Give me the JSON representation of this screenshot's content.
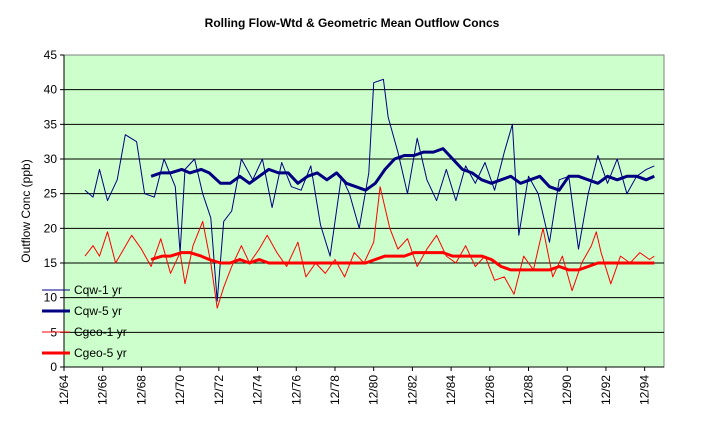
{
  "chart_data": {
    "type": "line",
    "title": "Rolling Flow-Wtd & Geometric Mean Outflow Concs",
    "ylabel": "Outflow Conc (ppb)",
    "xlabel": "",
    "ylim": [
      0,
      45
    ],
    "xlim": [
      "1964-12",
      "1995-12"
    ],
    "yticks": [
      "0",
      "5",
      "10",
      "15",
      "20",
      "25",
      "30",
      "35",
      "40",
      "45"
    ],
    "xticks": [
      "12/64",
      "12/66",
      "12/68",
      "12/70",
      "12/72",
      "12/74",
      "12/76",
      "12/78",
      "12/80",
      "12/82",
      "12/84",
      "12/86",
      "12/88",
      "12/90",
      "12/92",
      "12/94"
    ],
    "plot_background": "#ccffcc",
    "grid": "horizontal",
    "legend_placement": "left-inside",
    "series": [
      {
        "name": "Cqw-1 yr",
        "color": "#000080",
        "line_weight": "thin",
        "points": [
          [
            "1966-01",
            25.5
          ],
          [
            "1966-06",
            24.5
          ],
          [
            "1966-10",
            28.5
          ],
          [
            "1967-03",
            24.0
          ],
          [
            "1967-09",
            27.0
          ],
          [
            "1968-02",
            33.5
          ],
          [
            "1968-09",
            32.5
          ],
          [
            "1969-02",
            25.0
          ],
          [
            "1969-08",
            24.5
          ],
          [
            "1970-02",
            30.0
          ],
          [
            "1970-09",
            26.0
          ],
          [
            "1970-12",
            16.5
          ],
          [
            "1971-03",
            28.5
          ],
          [
            "1971-09",
            30.0
          ],
          [
            "1972-02",
            25.0
          ],
          [
            "1972-07",
            21.5
          ],
          [
            "1972-11",
            9.5
          ],
          [
            "1973-03",
            21.0
          ],
          [
            "1973-08",
            22.5
          ],
          [
            "1974-02",
            30.0
          ],
          [
            "1974-09",
            27.0
          ],
          [
            "1975-03",
            30.0
          ],
          [
            "1975-09",
            23.0
          ],
          [
            "1976-03",
            29.5
          ],
          [
            "1976-09",
            26.0
          ],
          [
            "1977-03",
            25.5
          ],
          [
            "1977-09",
            29.0
          ],
          [
            "1978-03",
            20.5
          ],
          [
            "1978-09",
            16.0
          ],
          [
            "1979-04",
            27.5
          ],
          [
            "1979-09",
            25.0
          ],
          [
            "1980-03",
            20.0
          ],
          [
            "1980-09",
            28.0
          ],
          [
            "1980-12",
            41.0
          ],
          [
            "1981-06",
            41.5
          ],
          [
            "1981-09",
            36.0
          ],
          [
            "1982-03",
            31.0
          ],
          [
            "1982-09",
            25.0
          ],
          [
            "1983-03",
            33.0
          ],
          [
            "1983-09",
            27.0
          ],
          [
            "1984-03",
            24.0
          ],
          [
            "1984-09",
            28.5
          ],
          [
            "1985-03",
            24.0
          ],
          [
            "1985-09",
            29.0
          ],
          [
            "1986-03",
            26.5
          ],
          [
            "1986-09",
            29.5
          ],
          [
            "1987-03",
            25.5
          ],
          [
            "1987-09",
            31.0
          ],
          [
            "1988-02",
            35.0
          ],
          [
            "1988-06",
            19.0
          ],
          [
            "1988-12",
            27.5
          ],
          [
            "1989-06",
            25.0
          ],
          [
            "1990-01",
            18.0
          ],
          [
            "1990-07",
            27.0
          ],
          [
            "1991-01",
            27.5
          ],
          [
            "1991-07",
            17.0
          ],
          [
            "1992-01",
            25.0
          ],
          [
            "1992-07",
            30.5
          ],
          [
            "1993-01",
            26.5
          ],
          [
            "1993-07",
            30.0
          ],
          [
            "1994-01",
            25.0
          ],
          [
            "1994-07",
            27.5
          ],
          [
            "1995-01",
            28.5
          ],
          [
            "1995-06",
            29.0
          ]
        ]
      },
      {
        "name": "Cqw-5 yr",
        "color": "#000080",
        "line_weight": "thick",
        "points": [
          [
            "1969-06",
            27.5
          ],
          [
            "1969-12",
            28.0
          ],
          [
            "1970-06",
            28.0
          ],
          [
            "1971-01",
            28.5
          ],
          [
            "1971-06",
            28.0
          ],
          [
            "1972-01",
            28.5
          ],
          [
            "1972-06",
            28.0
          ],
          [
            "1973-01",
            26.5
          ],
          [
            "1973-07",
            26.5
          ],
          [
            "1974-01",
            27.5
          ],
          [
            "1974-07",
            26.5
          ],
          [
            "1975-01",
            27.5
          ],
          [
            "1975-07",
            28.5
          ],
          [
            "1976-01",
            28.0
          ],
          [
            "1976-07",
            28.0
          ],
          [
            "1977-01",
            26.5
          ],
          [
            "1977-07",
            27.5
          ],
          [
            "1978-01",
            28.0
          ],
          [
            "1978-07",
            27.0
          ],
          [
            "1979-01",
            28.0
          ],
          [
            "1979-07",
            26.5
          ],
          [
            "1980-01",
            26.0
          ],
          [
            "1980-07",
            25.5
          ],
          [
            "1981-01",
            26.5
          ],
          [
            "1981-07",
            28.5
          ],
          [
            "1982-01",
            30.0
          ],
          [
            "1982-07",
            30.5
          ],
          [
            "1983-01",
            30.5
          ],
          [
            "1983-07",
            31.0
          ],
          [
            "1984-01",
            31.0
          ],
          [
            "1984-07",
            31.5
          ],
          [
            "1985-01",
            30.0
          ],
          [
            "1985-07",
            28.5
          ],
          [
            "1986-01",
            28.0
          ],
          [
            "1986-07",
            27.0
          ],
          [
            "1987-01",
            26.5
          ],
          [
            "1987-07",
            27.0
          ],
          [
            "1988-01",
            27.5
          ],
          [
            "1988-07",
            26.5
          ],
          [
            "1989-01",
            27.0
          ],
          [
            "1989-07",
            27.5
          ],
          [
            "1990-01",
            26.0
          ],
          [
            "1990-07",
            25.5
          ],
          [
            "1991-01",
            27.5
          ],
          [
            "1991-07",
            27.5
          ],
          [
            "1992-01",
            27.0
          ],
          [
            "1992-07",
            26.5
          ],
          [
            "1993-01",
            27.5
          ],
          [
            "1993-07",
            27.0
          ],
          [
            "1994-01",
            27.5
          ],
          [
            "1994-07",
            27.5
          ],
          [
            "1995-01",
            27.0
          ],
          [
            "1995-06",
            27.5
          ]
        ]
      },
      {
        "name": "Cgeo-1 yr",
        "color": "#ff0000",
        "line_weight": "thin",
        "points": [
          [
            "1966-01",
            16.0
          ],
          [
            "1966-06",
            17.5
          ],
          [
            "1966-10",
            16.0
          ],
          [
            "1967-03",
            19.5
          ],
          [
            "1967-08",
            15.0
          ],
          [
            "1968-01",
            17.0
          ],
          [
            "1968-06",
            19.0
          ],
          [
            "1968-12",
            17.0
          ],
          [
            "1969-06",
            14.5
          ],
          [
            "1969-12",
            18.5
          ],
          [
            "1970-06",
            13.5
          ],
          [
            "1970-12",
            16.5
          ],
          [
            "1971-03",
            12.0
          ],
          [
            "1971-08",
            17.5
          ],
          [
            "1972-02",
            21.0
          ],
          [
            "1972-07",
            15.0
          ],
          [
            "1972-11",
            8.5
          ],
          [
            "1973-03",
            11.5
          ],
          [
            "1973-08",
            14.5
          ],
          [
            "1974-02",
            17.5
          ],
          [
            "1974-07",
            15.0
          ],
          [
            "1975-01",
            17.0
          ],
          [
            "1975-06",
            19.0
          ],
          [
            "1975-12",
            16.5
          ],
          [
            "1976-06",
            14.5
          ],
          [
            "1977-01",
            18.0
          ],
          [
            "1977-06",
            13.0
          ],
          [
            "1977-12",
            15.0
          ],
          [
            "1978-06",
            13.5
          ],
          [
            "1978-12",
            15.5
          ],
          [
            "1979-06",
            13.0
          ],
          [
            "1979-12",
            16.5
          ],
          [
            "1980-06",
            15.0
          ],
          [
            "1980-12",
            18.0
          ],
          [
            "1981-04",
            26.0
          ],
          [
            "1981-10",
            20.0
          ],
          [
            "1982-03",
            17.0
          ],
          [
            "1982-09",
            18.5
          ],
          [
            "1983-03",
            14.5
          ],
          [
            "1983-09",
            17.0
          ],
          [
            "1984-03",
            19.0
          ],
          [
            "1984-09",
            16.0
          ],
          [
            "1985-03",
            15.0
          ],
          [
            "1985-09",
            17.5
          ],
          [
            "1986-03",
            14.5
          ],
          [
            "1986-09",
            16.0
          ],
          [
            "1987-03",
            12.5
          ],
          [
            "1987-09",
            13.0
          ],
          [
            "1988-03",
            10.5
          ],
          [
            "1988-09",
            16.0
          ],
          [
            "1989-03",
            14.0
          ],
          [
            "1989-09",
            20.0
          ],
          [
            "1990-03",
            13.0
          ],
          [
            "1990-09",
            16.0
          ],
          [
            "1991-03",
            11.0
          ],
          [
            "1991-09",
            15.0
          ],
          [
            "1992-03",
            17.5
          ],
          [
            "1992-06",
            19.5
          ],
          [
            "1992-09",
            16.5
          ],
          [
            "1993-03",
            12.0
          ],
          [
            "1993-09",
            16.0
          ],
          [
            "1994-03",
            15.0
          ],
          [
            "1994-09",
            16.5
          ],
          [
            "1995-03",
            15.5
          ],
          [
            "1995-06",
            16.0
          ]
        ]
      },
      {
        "name": "Cgeo-5 yr",
        "color": "#ff0000",
        "line_weight": "thick",
        "points": [
          [
            "1969-06",
            15.5
          ],
          [
            "1970-01",
            16.0
          ],
          [
            "1970-06",
            16.0
          ],
          [
            "1971-01",
            16.5
          ],
          [
            "1971-06",
            16.5
          ],
          [
            "1972-01",
            16.0
          ],
          [
            "1972-06",
            15.5
          ],
          [
            "1973-01",
            15.0
          ],
          [
            "1973-07",
            15.0
          ],
          [
            "1974-01",
            15.5
          ],
          [
            "1974-07",
            15.0
          ],
          [
            "1975-01",
            15.5
          ],
          [
            "1975-07",
            15.0
          ],
          [
            "1976-01",
            15.0
          ],
          [
            "1976-07",
            15.0
          ],
          [
            "1977-01",
            15.0
          ],
          [
            "1977-07",
            15.0
          ],
          [
            "1978-01",
            15.0
          ],
          [
            "1978-07",
            15.0
          ],
          [
            "1979-01",
            15.0
          ],
          [
            "1979-07",
            15.0
          ],
          [
            "1980-01",
            15.0
          ],
          [
            "1980-07",
            15.0
          ],
          [
            "1981-01",
            15.5
          ],
          [
            "1981-07",
            16.0
          ],
          [
            "1982-01",
            16.0
          ],
          [
            "1982-07",
            16.0
          ],
          [
            "1983-01",
            16.5
          ],
          [
            "1983-07",
            16.5
          ],
          [
            "1984-01",
            16.5
          ],
          [
            "1984-07",
            16.5
          ],
          [
            "1985-01",
            16.0
          ],
          [
            "1985-07",
            16.0
          ],
          [
            "1986-01",
            16.0
          ],
          [
            "1986-07",
            16.0
          ],
          [
            "1987-01",
            15.5
          ],
          [
            "1987-07",
            14.5
          ],
          [
            "1988-01",
            14.0
          ],
          [
            "1988-07",
            14.0
          ],
          [
            "1989-01",
            14.0
          ],
          [
            "1989-07",
            14.0
          ],
          [
            "1990-01",
            14.0
          ],
          [
            "1990-07",
            14.5
          ],
          [
            "1991-01",
            14.0
          ],
          [
            "1991-07",
            14.0
          ],
          [
            "1992-01",
            14.5
          ],
          [
            "1992-07",
            15.0
          ],
          [
            "1993-01",
            15.0
          ],
          [
            "1993-07",
            15.0
          ],
          [
            "1994-01",
            15.0
          ],
          [
            "1994-07",
            15.0
          ],
          [
            "1995-01",
            15.0
          ],
          [
            "1995-06",
            15.0
          ]
        ]
      }
    ]
  }
}
